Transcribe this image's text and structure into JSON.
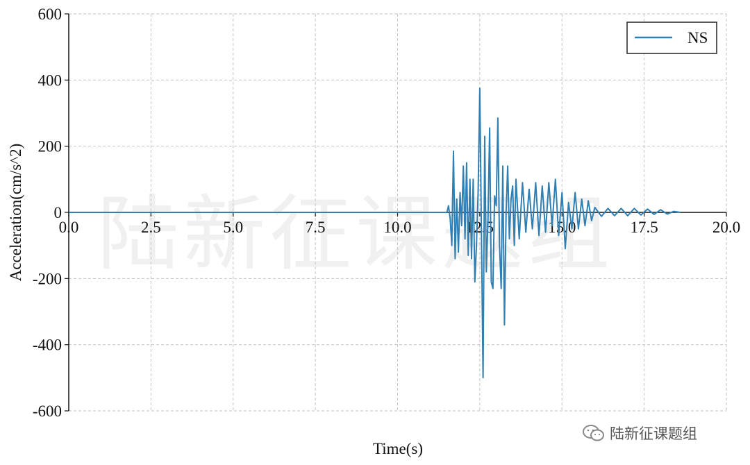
{
  "chart_data": {
    "type": "line",
    "xlabel": "Time(s)",
    "ylabel": "Acceleration(cm/s^2)",
    "xlim": [
      0,
      20
    ],
    "ylim": [
      -600,
      600
    ],
    "xticks": [
      0,
      2.5,
      5,
      7.5,
      10,
      12.5,
      15,
      17.5,
      20
    ],
    "xtick_labels": [
      "0.0",
      "2.5",
      "5.0",
      "7.5",
      "10.0",
      "12.5",
      "15.0",
      "17.5",
      "20.0"
    ],
    "yticks": [
      -600,
      -400,
      -200,
      0,
      200,
      400,
      600
    ],
    "ytick_labels": [
      "-600",
      "-400",
      "-200",
      "0",
      "200",
      "400",
      "600"
    ],
    "grid": true,
    "legend_position": "top-right",
    "series": [
      {
        "name": "NS",
        "color": "#2f7fb3",
        "x": [
          0,
          11.5,
          11.55,
          11.6,
          11.65,
          11.7,
          11.75,
          11.8,
          11.85,
          11.9,
          11.95,
          12.0,
          12.05,
          12.1,
          12.15,
          12.2,
          12.25,
          12.3,
          12.35,
          12.4,
          12.45,
          12.5,
          12.55,
          12.6,
          12.65,
          12.7,
          12.75,
          12.8,
          12.85,
          12.9,
          12.95,
          13.0,
          13.05,
          13.1,
          13.15,
          13.2,
          13.25,
          13.3,
          13.35,
          13.4,
          13.45,
          13.5,
          13.55,
          13.6,
          13.7,
          13.8,
          13.9,
          14.0,
          14.1,
          14.2,
          14.3,
          14.4,
          14.5,
          14.6,
          14.7,
          14.8,
          14.9,
          15.0,
          15.1,
          15.2,
          15.3,
          15.4,
          15.5,
          15.6,
          15.7,
          15.8,
          15.9,
          16.0,
          16.2,
          16.4,
          16.6,
          16.8,
          17.0,
          17.2,
          17.4,
          17.6,
          17.8,
          18.0,
          18.2,
          18.4,
          18.6
        ],
        "y": [
          0,
          0,
          20,
          -20,
          -100,
          185,
          -140,
          40,
          -120,
          60,
          -40,
          140,
          -80,
          150,
          -130,
          100,
          -140,
          100,
          -210,
          -100,
          60,
          375,
          -50,
          -500,
          230,
          -180,
          -20,
          255,
          -210,
          -230,
          50,
          20,
          285,
          -100,
          -230,
          140,
          -340,
          0,
          140,
          -80,
          40,
          80,
          -100,
          100,
          -80,
          90,
          -60,
          70,
          -50,
          90,
          -70,
          80,
          -60,
          90,
          -40,
          100,
          -70,
          60,
          -110,
          30,
          -50,
          60,
          -50,
          40,
          -40,
          35,
          -25,
          15,
          -12,
          12,
          -10,
          12,
          -10,
          12,
          -8,
          10,
          -6,
          8,
          -5,
          3,
          0
        ]
      }
    ]
  },
  "watermark": {
    "text": "陆新征课题组"
  },
  "brand": {
    "text": "陆新征课题组",
    "icon": "wechat-icon"
  }
}
